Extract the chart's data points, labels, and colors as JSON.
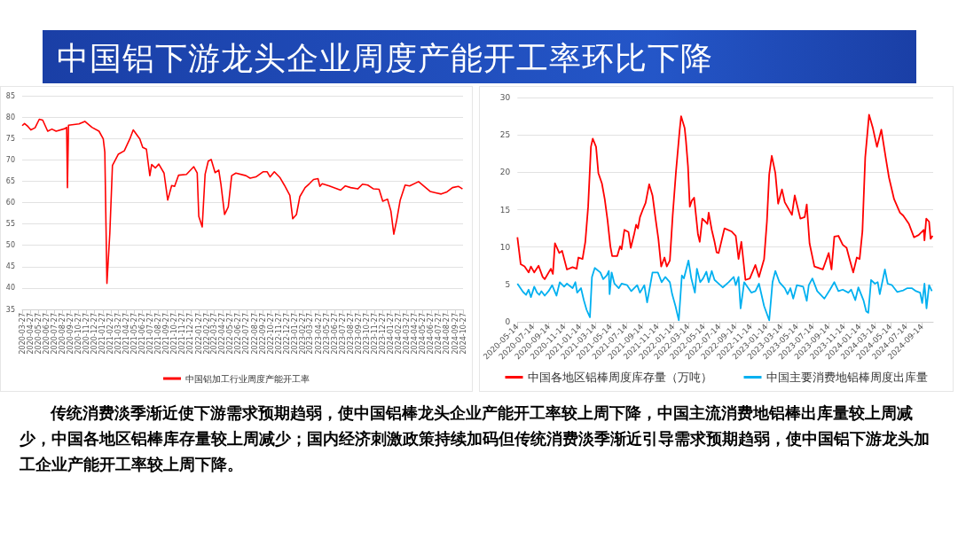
{
  "chart_data": [
    {
      "type": "line",
      "title": "中国铝下游龙头企业周度产能开工率环比下降",
      "annotations": [
        "传统消费淡季渐近使下游需求预期趋弱，使中国铝棒龙头企业产能开工率较上周下降，中国主流消费地铝棒出库量较上周减少，中国各地区铝棒库存量较上周减少；国内经济刺激政策持续加码但传统消费淡季渐近引导需求预期趋弱，使中国铝下游龙头加工企业产能开工率较上周下降。"
      ],
      "xlim": [
        "2020-03-27",
        "2024-10-27"
      ],
      "xticks": [
        "2020-03-27",
        "2020-04-27",
        "2020-05-27",
        "2020-06-27",
        "2020-07-27",
        "2020-08-27",
        "2020-09-27",
        "2020-10-27",
        "2020-11-27",
        "2020-12-27",
        "2021-01-27",
        "2021-02-27",
        "2021-03-27",
        "2021-04-27",
        "2021-05-27",
        "2021-06-27",
        "2021-07-27",
        "2021-08-27",
        "2021-09-27",
        "2021-10-27",
        "2021-11-27",
        "2021-12-27",
        "2022-01-27",
        "2022-02-27",
        "2022-03-27",
        "2022-04-27",
        "2022-05-27",
        "2022-06-27",
        "2022-07-27",
        "2022-08-27",
        "2022-09-27",
        "2022-10-27",
        "2022-11-27",
        "2022-12-27",
        "2023-01-27",
        "2023-02-27",
        "2023-03-27",
        "2023-04-27",
        "2023-05-27",
        "2023-06-27",
        "2023-07-27",
        "2023-08-27",
        "2023-09-27",
        "2023-10-27",
        "2023-11-27",
        "2023-12-27",
        "2024-01-27",
        "2024-02-27",
        "2024-03-27",
        "2024-04-27",
        "2024-05-27",
        "2024-06-27",
        "2024-07-27",
        "2024-08-27",
        "2024-09-27",
        "2024-10-27"
      ],
      "ylim": [
        35,
        85
      ],
      "yticks": [
        35,
        40,
        45,
        50,
        55,
        60,
        65,
        70,
        75,
        80,
        85
      ],
      "grid": "y",
      "legend": "bottom",
      "marker": "none",
      "line_style": "solid",
      "series": [
        {
          "name": "中国铝加工行业周度产能开工率",
          "color": "#ff0000",
          "x": [
            "2020-03-27",
            "2020-04-05",
            "2020-04-18",
            "2020-04-29",
            "2020-05-15",
            "2020-05-31",
            "2020-06-13",
            "2020-07-02",
            "2020-07-18",
            "2020-08-03",
            "2020-09-05",
            "2020-09-12",
            "2020-09-15",
            "2020-09-19",
            "2020-10-29",
            "2020-11-20",
            "2020-12-17",
            "2021-01-13",
            "2021-01-29",
            "2021-02-04",
            "2021-02-12",
            "2021-02-23",
            "2021-03-05",
            "2021-03-27",
            "2021-04-19",
            "2021-05-10",
            "2021-05-23",
            "2021-06-17",
            "2021-06-28",
            "2021-07-12",
            "2021-07-25",
            "2021-08-01",
            "2021-08-15",
            "2021-08-28",
            "2021-09-17",
            "2021-10-01",
            "2021-10-16",
            "2021-10-27",
            "2021-11-11",
            "2021-12-11",
            "2022-01-08",
            "2022-01-21",
            "2022-01-27",
            "2022-02-09",
            "2022-02-20",
            "2022-03-04",
            "2022-03-15",
            "2022-03-30",
            "2022-04-13",
            "2022-04-21",
            "2022-05-05",
            "2022-05-19",
            "2022-06-01",
            "2022-06-17",
            "2022-07-25",
            "2022-08-10",
            "2022-09-01",
            "2022-09-28",
            "2022-10-14",
            "2022-10-25",
            "2022-11-10",
            "2022-12-02",
            "2022-12-18",
            "2023-01-08",
            "2023-01-19",
            "2023-02-02",
            "2023-02-15",
            "2023-03-07",
            "2023-03-23",
            "2023-04-08",
            "2023-04-25",
            "2023-05-02",
            "2023-05-11",
            "2023-06-07",
            "2023-07-20",
            "2023-08-07",
            "2023-08-27",
            "2023-09-23",
            "2023-10-11",
            "2023-10-31",
            "2023-11-22",
            "2023-12-13",
            "2023-12-27",
            "2024-01-14",
            "2024-01-27",
            "2024-02-07",
            "2024-02-18",
            "2024-03-02",
            "2024-03-21",
            "2024-04-07",
            "2024-05-11",
            "2024-06-24",
            "2024-07-15",
            "2024-08-05",
            "2024-08-27",
            "2024-09-17",
            "2024-10-09",
            "2024-10-25"
          ],
          "values": [
            78,
            78.5,
            77.8,
            77,
            77.5,
            79.5,
            79.3,
            76.7,
            77.2,
            76.7,
            77.3,
            77.6,
            63.5,
            78.1,
            78.4,
            79,
            77.6,
            76.7,
            74.9,
            71.8,
            41.1,
            52.8,
            68.7,
            71.3,
            72.1,
            74.9,
            77,
            74.9,
            72.9,
            72.5,
            66.3,
            68.9,
            68.1,
            69,
            66.9,
            60.6,
            64,
            63.8,
            66.4,
            66.6,
            68.4,
            66.9,
            56.8,
            54.3,
            66.6,
            69.7,
            70.1,
            67,
            67.6,
            64.4,
            57.2,
            59,
            66.3,
            66.9,
            66.3,
            65.7,
            66,
            67.2,
            67.2,
            66,
            67.2,
            65.8,
            64.1,
            61.7,
            56.2,
            57.2,
            61.4,
            63.5,
            64.4,
            65.4,
            65.6,
            63.8,
            64.4,
            63.9,
            62.9,
            63.9,
            63.5,
            63.2,
            64.3,
            64.1,
            63.2,
            63.1,
            60.3,
            60.8,
            58,
            52.6,
            55.9,
            60.5,
            64.1,
            63.9,
            64.9,
            62.6,
            62.3,
            62,
            62.5,
            63.5,
            63.8,
            63.2
          ]
        }
      ]
    },
    {
      "type": "line",
      "xlim": [
        "2020-05-14",
        "2024-10-28"
      ],
      "xticks": [
        "2020-05-14",
        "2020-07-14",
        "2020-09-14",
        "2020-11-14",
        "2021-01-14",
        "2021-03-14",
        "2021-05-14",
        "2021-07-14",
        "2021-09-14",
        "2021-11-14",
        "2022-01-14",
        "2022-03-14",
        "2022-05-14",
        "2022-07-14",
        "2022-09-14",
        "2022-11-14",
        "2023-01-14",
        "2023-03-14",
        "2023-05-14",
        "2023-07-14",
        "2023-09-14",
        "2023-11-14",
        "2024-01-14",
        "2024-03-14",
        "2024-05-14",
        "2024-07-14",
        "2024-09-14"
      ],
      "ylim": [
        0,
        30
      ],
      "yticks": [
        0,
        5,
        10,
        15,
        20,
        25,
        30
      ],
      "grid": "y",
      "legend": "bottom",
      "marker": "none",
      "line_style": "solid",
      "series": [
        {
          "name": "中国各地区铝棒周度库存量（万吨）",
          "color": "#ff0000",
          "x": [
            "2020-05-14",
            "2020-05-27",
            "2020-06-11",
            "2020-06-27",
            "2020-07-06",
            "2020-07-19",
            "2020-08-05",
            "2020-08-21",
            "2020-08-29",
            "2020-09-22",
            "2020-09-30",
            "2020-10-08",
            "2020-10-25",
            "2020-11-05",
            "2020-11-24",
            "2020-12-16",
            "2021-01-01",
            "2021-01-08",
            "2021-01-24",
            "2021-02-04",
            "2021-02-15",
            "2021-02-26",
            "2021-03-05",
            "2021-03-18",
            "2021-03-27",
            "2021-04-10",
            "2021-04-21",
            "2021-05-02",
            "2021-05-13",
            "2021-05-20",
            "2021-06-09",
            "2021-06-20",
            "2021-06-26",
            "2021-07-07",
            "2021-07-23",
            "2021-08-01",
            "2021-08-14",
            "2021-08-22",
            "2021-08-29",
            "2021-09-06",
            "2021-09-17",
            "2021-09-28",
            "2021-10-12",
            "2021-10-25",
            "2021-11-06",
            "2021-11-17",
            "2021-11-28",
            "2021-12-11",
            "2021-12-20",
            "2022-01-01",
            "2022-01-12",
            "2022-01-25",
            "2022-02-08",
            "2022-02-14",
            "2022-02-28",
            "2022-03-05",
            "2022-03-13",
            "2022-03-20",
            "2022-03-28",
            "2022-04-06",
            "2022-04-14",
            "2022-04-21",
            "2022-04-28",
            "2022-05-08",
            "2022-05-20",
            "2022-05-28",
            "2022-06-02",
            "2022-06-14",
            "2022-06-25",
            "2022-07-03",
            "2022-07-11",
            "2022-08-03",
            "2022-08-30",
            "2022-09-16",
            "2022-09-27",
            "2022-10-08",
            "2022-10-24",
            "2022-11-10",
            "2022-12-02",
            "2022-12-16",
            "2023-01-05",
            "2023-01-16",
            "2023-01-25",
            "2023-02-04",
            "2023-02-18",
            "2023-03-01",
            "2023-03-16",
            "2023-03-27",
            "2023-04-24",
            "2023-05-05",
            "2023-05-27",
            "2023-06-13",
            "2023-06-21",
            "2023-07-02",
            "2023-07-21",
            "2023-08-23",
            "2023-09-15",
            "2023-09-26",
            "2023-10-07",
            "2023-10-23",
            "2023-11-09",
            "2023-11-24",
            "2023-12-07",
            "2023-12-20",
            "2024-01-03",
            "2024-01-14",
            "2024-01-25",
            "2024-02-05",
            "2024-02-20",
            "2024-03-06",
            "2024-03-22",
            "2024-04-08",
            "2024-04-25",
            "2024-05-08",
            "2024-05-28",
            "2024-06-20",
            "2024-07-03",
            "2024-07-25",
            "2024-08-14",
            "2024-09-01",
            "2024-09-21",
            "2024-09-24",
            "2024-10-01",
            "2024-10-12",
            "2024-10-18",
            "2024-10-26"
          ],
          "values": [
            11.3,
            7.7,
            7.4,
            6.6,
            7.4,
            6.6,
            7.5,
            6,
            5.7,
            7.1,
            6.4,
            10.5,
            9.2,
            9.5,
            7,
            7.3,
            7.1,
            8.6,
            8.4,
            10.7,
            15.4,
            23.4,
            24.5,
            23.4,
            19.9,
            18.5,
            16.4,
            13.6,
            10.1,
            8.8,
            8.8,
            10.1,
            9.7,
            12.3,
            12,
            9.9,
            11.7,
            13,
            12.5,
            14,
            15,
            15.9,
            18.4,
            16.9,
            13.8,
            11.1,
            7.4,
            8.6,
            7.4,
            8.2,
            14.2,
            20.1,
            25.5,
            27.5,
            25.9,
            24.2,
            20.8,
            15.4,
            16.2,
            16.6,
            14,
            11.7,
            10.7,
            13.8,
            13.4,
            13.1,
            14.6,
            12.3,
            10.7,
            9.3,
            9.2,
            12.5,
            12.1,
            11.5,
            8.4,
            10.7,
            5.6,
            5.8,
            7.6,
            6,
            8.4,
            13.4,
            19.7,
            22.2,
            19.9,
            15.8,
            17.7,
            16,
            14.3,
            16.9,
            13.8,
            14,
            15.7,
            10.5,
            7.4,
            7,
            9.2,
            7,
            11.4,
            11.5,
            10.3,
            9.9,
            8.2,
            6.6,
            8.6,
            8.4,
            12.1,
            22,
            27.7,
            25.9,
            23.4,
            25.7,
            22,
            19.3,
            16.4,
            14.6,
            14.2,
            13.1,
            11.3,
            11.6,
            12.3,
            10.9,
            13.8,
            13.4,
            11.1,
            11.5
          ]
        },
        {
          "name": "中国主要消费地铝棒周度出库量",
          "color": "#00b0f0",
          "x": [
            "2020-05-14",
            "2020-06-05",
            "2020-06-17",
            "2020-06-27",
            "2020-07-06",
            "2020-07-19",
            "2020-07-30",
            "2020-08-08",
            "2020-08-16",
            "2020-08-29",
            "2020-09-13",
            "2020-09-27",
            "2020-10-14",
            "2020-10-27",
            "2020-11-13",
            "2020-11-24",
            "2020-12-16",
            "2020-12-27",
            "2021-01-03",
            "2021-01-18",
            "2021-01-29",
            "2021-02-09",
            "2021-02-22",
            "2021-03-02",
            "2021-03-13",
            "2021-04-04",
            "2021-04-15",
            "2021-04-29",
            "2021-05-07",
            "2021-05-10",
            "2021-05-18",
            "2021-05-29",
            "2021-06-15",
            "2021-06-26",
            "2021-07-18",
            "2021-08-03",
            "2021-08-26",
            "2021-09-06",
            "2021-09-23",
            "2021-10-04",
            "2021-10-25",
            "2021-11-15",
            "2021-11-30",
            "2021-12-14",
            "2022-01-01",
            "2022-01-10",
            "2022-01-23",
            "2022-02-05",
            "2022-02-17",
            "2022-02-25",
            "2022-03-15",
            "2022-03-26",
            "2022-04-09",
            "2022-04-17",
            "2022-04-30",
            "2022-05-11",
            "2022-05-24",
            "2022-06-02",
            "2022-06-14",
            "2022-06-25",
            "2022-07-05",
            "2022-07-27",
            "2022-08-19",
            "2022-09-08",
            "2022-09-16",
            "2022-09-27",
            "2022-10-05",
            "2022-10-19",
            "2022-11-16",
            "2022-12-02",
            "2022-12-16",
            "2023-01-05",
            "2023-01-25",
            "2023-02-07",
            "2023-02-18",
            "2023-03-06",
            "2023-03-27",
            "2023-04-07",
            "2023-04-18",
            "2023-04-29",
            "2023-05-13",
            "2023-06-07",
            "2023-06-21",
            "2023-06-29",
            "2023-07-13",
            "2023-08-01",
            "2023-08-29",
            "2023-09-20",
            "2023-10-07",
            "2023-10-23",
            "2023-11-09",
            "2023-12-01",
            "2023-12-12",
            "2023-12-28",
            "2024-01-09",
            "2024-01-29",
            "2024-02-09",
            "2024-02-17",
            "2024-02-28",
            "2024-03-14",
            "2024-03-25",
            "2024-04-02",
            "2024-04-22",
            "2024-05-03",
            "2024-05-20",
            "2024-06-09",
            "2024-07-03",
            "2024-07-19",
            "2024-08-05",
            "2024-08-22",
            "2024-09-07",
            "2024-09-15",
            "2024-09-24",
            "2024-10-02",
            "2024-10-12",
            "2024-10-23"
          ],
          "values": [
            5.1,
            4,
            3.6,
            4.3,
            3.3,
            4.7,
            3.9,
            3.6,
            4.1,
            3.5,
            4.1,
            4.9,
            3.5,
            5.3,
            4.7,
            5.1,
            4.5,
            5.3,
            3.9,
            4.5,
            2.9,
            1.6,
            0.6,
            6,
            7.2,
            6.6,
            5.7,
            6.2,
            6.8,
            3.7,
            6.6,
            5.1,
            4.5,
            5.1,
            4.9,
            4.1,
            4.9,
            3.9,
            4.9,
            2.6,
            6.6,
            6.6,
            5.3,
            6,
            5.3,
            3.7,
            2.1,
            0.2,
            6.2,
            5.8,
            8.2,
            5.8,
            3.9,
            7.1,
            5.3,
            5.8,
            6.7,
            5.3,
            6.8,
            5.6,
            5.3,
            4.6,
            5.3,
            6,
            4.9,
            6,
            1.8,
            5.3,
            3.9,
            4.1,
            5.1,
            2.1,
            0.2,
            5.3,
            6.8,
            5.3,
            4.5,
            3.7,
            4.5,
            3.1,
            4.9,
            4.7,
            2.8,
            4.9,
            5.8,
            4.1,
            3.1,
            4.3,
            5.3,
            4.1,
            4.3,
            3.9,
            4.3,
            2.9,
            4.6,
            2.9,
            1.4,
            1.2,
            5.6,
            5.1,
            5.3,
            3.7,
            7,
            5.1,
            4.9,
            4,
            4.2,
            4.5,
            4.5,
            4.1,
            3.9,
            2.5,
            5.1,
            1.8,
            4.9,
            4.1
          ]
        }
      ]
    }
  ]
}
